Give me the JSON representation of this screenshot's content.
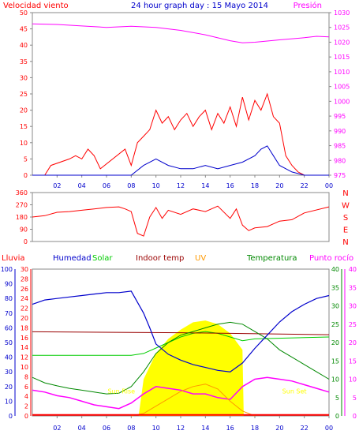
{
  "title": "24 hour graph day : 15 Mayo 2014",
  "colors": {
    "wind": "#ff0000",
    "pressure": "#ff00ff",
    "title": "#0000cc",
    "humidity": "#0000cc",
    "solar": "#00cc00",
    "indoor": "#990000",
    "uv": "#ff9900",
    "temperature": "#008800",
    "dew": "#ff00ff",
    "rain": "#ff0000",
    "sun_fill": "#ffff00"
  },
  "chart_data": [
    {
      "type": "line",
      "name": "wind-pressure",
      "labels": {
        "left": "Velocidad viento",
        "right": "Presión"
      },
      "x_ticks": [
        "02",
        "04",
        "06",
        "08",
        "10",
        "12",
        "14",
        "16",
        "18",
        "20",
        "22",
        "00"
      ],
      "y_left": {
        "min": 0,
        "max": 50,
        "ticks": [
          0,
          5,
          10,
          15,
          20,
          25,
          30,
          35,
          40,
          45,
          50
        ]
      },
      "y_right": {
        "min": 975,
        "max": 1030,
        "ticks": [
          975,
          980,
          985,
          990,
          995,
          1000,
          1005,
          1010,
          1015,
          1020,
          1025,
          1030
        ]
      },
      "series": {
        "pressure": {
          "x": [
            0,
            2,
            4,
            6,
            8,
            10,
            12,
            14,
            16,
            17,
            18,
            20,
            22,
            23,
            24
          ],
          "y": [
            1026.2,
            1026.0,
            1025.5,
            1025.0,
            1025.4,
            1025.0,
            1024.0,
            1022.5,
            1020.5,
            1019.8,
            1020.0,
            1020.8,
            1021.5,
            1022.0,
            1021.8
          ]
        },
        "wind_gust": {
          "x": [
            0,
            1,
            1.5,
            3,
            3.5,
            4,
            4.5,
            5,
            5.5,
            7.5,
            8,
            8.5,
            9,
            9.5,
            10,
            10.5,
            11,
            11.5,
            12,
            12.5,
            13,
            13.5,
            14,
            14.5,
            15,
            15.5,
            16,
            16.5,
            17,
            17.5,
            18,
            18.5,
            19,
            19.5,
            20,
            20.5,
            21,
            21.5,
            22,
            24
          ],
          "y": [
            0,
            0,
            3,
            5,
            6,
            5,
            8,
            6,
            2,
            8,
            3,
            10,
            12,
            14,
            20,
            16,
            18,
            14,
            17,
            19,
            15,
            18,
            20,
            14,
            19,
            16,
            21,
            15,
            24,
            17,
            23,
            20,
            25,
            18,
            16,
            6,
            3,
            1,
            0,
            0
          ]
        },
        "wind_avg": {
          "x": [
            0,
            8,
            9,
            10,
            11,
            12,
            13,
            14,
            15,
            16,
            17,
            18,
            18.5,
            19,
            19.5,
            20,
            21,
            22,
            24
          ],
          "y": [
            0,
            0,
            3,
            5,
            3,
            2,
            2,
            3,
            2,
            3,
            4,
            6,
            8,
            9,
            6,
            3,
            1,
            0,
            0
          ]
        }
      }
    },
    {
      "type": "line",
      "name": "wind-direction",
      "labels": {
        "right": [
          "N",
          "W",
          "S",
          "E",
          "N"
        ]
      },
      "y_left": {
        "min": 0,
        "max": 360,
        "ticks": [
          0,
          90,
          180,
          270,
          360
        ]
      },
      "series": {
        "direction": {
          "x": [
            0,
            1,
            2,
            3,
            4,
            5,
            6,
            7,
            7.5,
            8,
            8.5,
            9,
            9.5,
            10,
            10.5,
            11,
            12,
            13,
            14,
            15,
            16,
            16.5,
            17,
            17.5,
            18,
            19,
            20,
            21,
            22,
            24
          ],
          "y": [
            180,
            190,
            215,
            220,
            230,
            240,
            250,
            255,
            240,
            220,
            60,
            40,
            180,
            250,
            170,
            230,
            200,
            240,
            220,
            260,
            170,
            240,
            120,
            80,
            100,
            110,
            150,
            160,
            210,
            255
          ]
        }
      }
    },
    {
      "type": "line",
      "name": "humidity-solar-temp",
      "labels": {
        "rain": "Lluvia",
        "humidity": "Humedad",
        "solar": "Solar",
        "indoor": "Indoor temp",
        "uv": "UV",
        "temperature": "Temperatura",
        "dew": "Punto rocío"
      },
      "y_humidity": {
        "min": 0,
        "max": 100,
        "ticks": [
          0,
          10,
          20,
          30,
          40,
          50,
          60,
          70,
          80,
          90,
          100
        ]
      },
      "y_rain": {
        "min": 0,
        "max": 30,
        "ticks": [
          0,
          2,
          4,
          6,
          8,
          10,
          12,
          14,
          16,
          18,
          20,
          22,
          24,
          26,
          28,
          30
        ]
      },
      "y_temp": {
        "min": 0,
        "max": 40,
        "ticks": [
          0,
          5,
          10,
          15,
          20,
          25,
          30,
          35,
          40
        ]
      },
      "y_right": {
        "min": 0,
        "max": 40,
        "ticks": [
          0,
          5,
          10,
          15,
          20,
          25,
          30,
          35,
          40
        ]
      },
      "series": {
        "humidity": {
          "x": [
            0,
            1,
            2,
            3,
            4,
            5,
            6,
            7,
            8,
            9,
            9.5,
            10,
            11,
            12,
            13,
            14,
            15,
            16,
            17,
            18,
            19,
            20,
            21,
            22,
            23,
            24
          ],
          "y": [
            76,
            79,
            80,
            81,
            82,
            83,
            84,
            84,
            85,
            70,
            60,
            49,
            42,
            38,
            35,
            33,
            31,
            30,
            36,
            46,
            55,
            64,
            71,
            76,
            80,
            82
          ]
        },
        "indoor": {
          "x": [
            0,
            12,
            24
          ],
          "y": [
            17.2,
            17.0,
            16.6
          ]
        },
        "temperature": {
          "x": [
            0,
            1,
            2,
            3,
            4,
            5,
            6,
            7,
            8,
            9,
            10,
            11,
            12,
            13,
            14,
            15,
            16,
            17,
            18,
            19,
            20,
            21,
            22,
            23,
            24
          ],
          "y": [
            10.5,
            9.0,
            8.2,
            7.5,
            7.0,
            6.5,
            6.0,
            6.2,
            8.0,
            12.0,
            17.0,
            20.0,
            22.0,
            23.0,
            24.0,
            25.0,
            25.5,
            25.0,
            23.0,
            21.0,
            18.0,
            16.0,
            14.0,
            12.0,
            10.0
          ]
        },
        "dew": {
          "x": [
            0,
            1,
            2,
            3,
            4,
            5,
            6,
            7,
            8,
            9,
            10,
            11,
            12,
            13,
            14,
            15,
            16,
            17,
            18,
            19,
            20,
            21,
            22,
            23,
            24
          ],
          "y": [
            7.0,
            6.5,
            5.5,
            5.0,
            4.0,
            3.0,
            2.5,
            2.0,
            3.5,
            6.0,
            8.0,
            7.5,
            7.0,
            6.0,
            6.0,
            5.0,
            4.5,
            8.0,
            10.0,
            10.5,
            10.0,
            9.5,
            8.5,
            7.5,
            6.5
          ]
        },
        "solar_max": {
          "x": [
            0,
            8,
            9,
            10,
            11,
            12,
            13,
            14,
            15,
            16,
            17,
            18,
            24
          ],
          "y": [
            16.5,
            16.5,
            17,
            18.5,
            20,
            21.5,
            22.5,
            23,
            22.5,
            21.5,
            20.5,
            21,
            21.5
          ]
        },
        "solar_sun": {
          "x": [
            8.6,
            9,
            10,
            11,
            12,
            13,
            14,
            15,
            16,
            17,
            17.1
          ],
          "y": [
            0,
            10,
            17,
            21,
            23.5,
            25.5,
            26,
            25,
            22.5,
            18,
            0
          ]
        },
        "uv": {
          "x": [
            8,
            9,
            10,
            11,
            12,
            13,
            14,
            15,
            16,
            17,
            18
          ],
          "y": [
            0,
            0.5,
            2,
            3.5,
            5,
            6,
            6.5,
            5.5,
            3,
            1,
            0
          ]
        },
        "rain": {
          "x": [
            0,
            24
          ],
          "y": [
            0.2,
            0.2
          ]
        }
      },
      "annotations": [
        {
          "text": "Sun Rise",
          "x": 7.2,
          "y": 4.6
        },
        {
          "text": "Sun Set",
          "x": 21.2,
          "y": 4.6
        }
      ]
    }
  ]
}
